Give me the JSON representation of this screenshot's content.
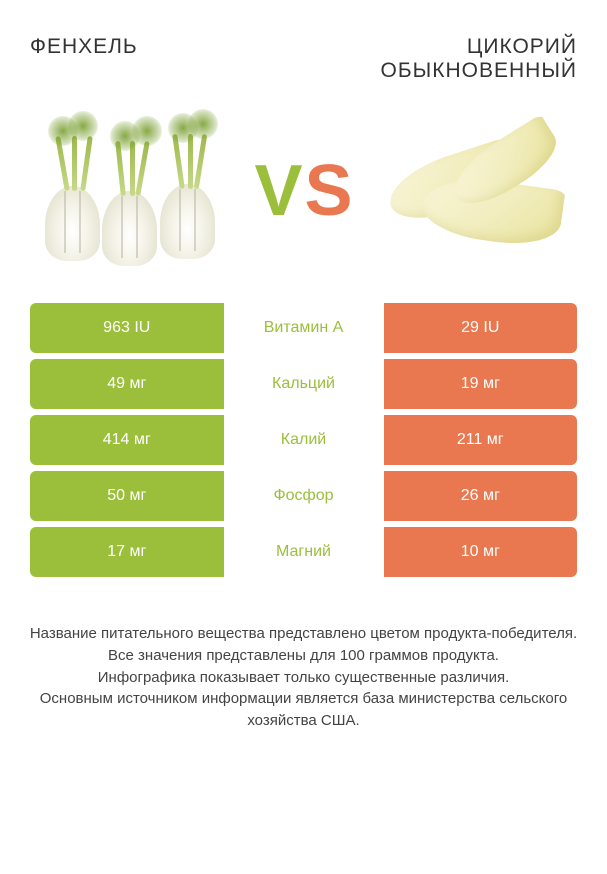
{
  "colors": {
    "left": "#9bbf3b",
    "right": "#e97850",
    "vs_v": "#9bbf3b",
    "vs_s": "#e97850",
    "text": "#444444"
  },
  "titles": {
    "left": "ФЕНХЕЛЬ",
    "right": "ЦИКОРИЙ ОБЫКНОВЕННЫЙ"
  },
  "vs": {
    "v": "V",
    "s": "S"
  },
  "rows": [
    {
      "left": "963 IU",
      "label": "Витамин A",
      "right": "29 IU",
      "winner": "left"
    },
    {
      "left": "49 мг",
      "label": "Кальций",
      "right": "19 мг",
      "winner": "left"
    },
    {
      "left": "414 мг",
      "label": "Калий",
      "right": "211 мг",
      "winner": "left"
    },
    {
      "left": "50 мг",
      "label": "Фосфор",
      "right": "26 мг",
      "winner": "left"
    },
    {
      "left": "17 мг",
      "label": "Магний",
      "right": "10 мг",
      "winner": "left"
    }
  ],
  "footer": [
    "Название питательного вещества представлено цветом продукта-победителя.",
    "Все значения представлены для 100 граммов продукта.",
    "Инфографика показывает только существенные различия.",
    "Основным источником информации является база министерства сельского хозяйства США."
  ]
}
